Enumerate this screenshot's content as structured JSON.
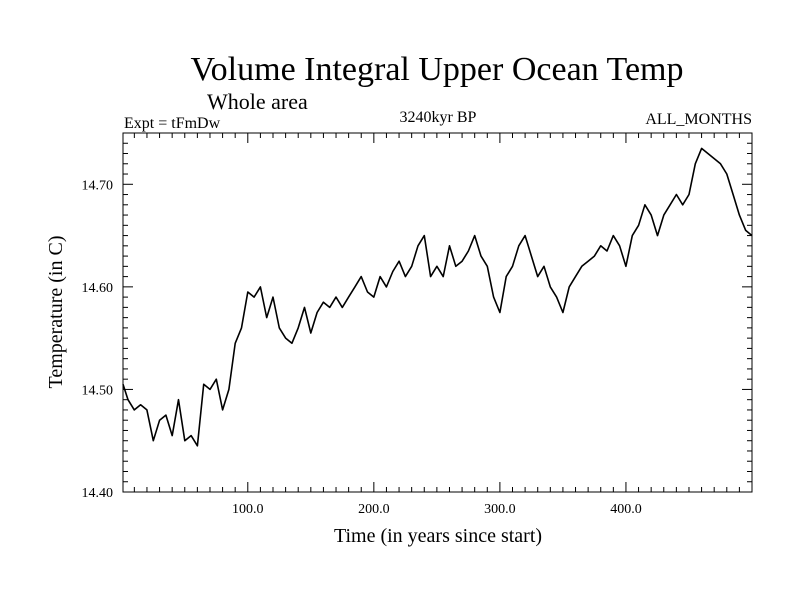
{
  "chart_data": {
    "type": "line",
    "title": "Volume Integral Upper Ocean Temp",
    "subtitle": "Whole area",
    "left_label": "Expt = tFmDw",
    "center_label": "3240kyr BP",
    "right_label": "ALL_MONTHS",
    "xlabel": "Time (in years since start)",
    "ylabel": "Temperature (in C)",
    "xlim": [
      1,
      500
    ],
    "ylim": [
      14.4,
      14.75
    ],
    "x_major_ticks": [
      100,
      200,
      300,
      400
    ],
    "x_tick_labels": [
      "100.0",
      "200.0",
      "300.0",
      "400.0"
    ],
    "y_major_ticks": [
      14.4,
      14.5,
      14.6,
      14.7
    ],
    "y_tick_labels": [
      "14.40",
      "14.50",
      "14.60",
      "14.70"
    ],
    "grid": false,
    "series": [
      {
        "name": "Volume integral upper ocean temperature",
        "x": [
          1,
          5,
          10,
          15,
          20,
          25,
          30,
          35,
          40,
          45,
          50,
          55,
          60,
          65,
          70,
          75,
          80,
          85,
          90,
          95,
          100,
          105,
          110,
          115,
          120,
          125,
          130,
          135,
          140,
          145,
          150,
          155,
          160,
          165,
          170,
          175,
          180,
          185,
          190,
          195,
          200,
          205,
          210,
          215,
          220,
          225,
          230,
          235,
          240,
          245,
          250,
          255,
          260,
          265,
          270,
          275,
          280,
          285,
          290,
          295,
          300,
          305,
          310,
          315,
          320,
          325,
          330,
          335,
          340,
          345,
          350,
          355,
          360,
          365,
          370,
          375,
          380,
          385,
          390,
          395,
          400,
          405,
          410,
          415,
          420,
          425,
          430,
          435,
          440,
          445,
          450,
          455,
          460,
          465,
          470,
          475,
          480,
          485,
          490,
          495,
          500
        ],
        "values": [
          14.505,
          14.49,
          14.48,
          14.485,
          14.48,
          14.45,
          14.47,
          14.475,
          14.455,
          14.49,
          14.45,
          14.455,
          14.445,
          14.505,
          14.5,
          14.51,
          14.48,
          14.5,
          14.545,
          14.56,
          14.595,
          14.59,
          14.6,
          14.57,
          14.59,
          14.56,
          14.55,
          14.545,
          14.56,
          14.58,
          14.555,
          14.575,
          14.585,
          14.58,
          14.59,
          14.58,
          14.59,
          14.6,
          14.61,
          14.595,
          14.59,
          14.61,
          14.6,
          14.615,
          14.625,
          14.61,
          14.62,
          14.64,
          14.65,
          14.61,
          14.62,
          14.61,
          14.64,
          14.62,
          14.625,
          14.635,
          14.65,
          14.63,
          14.62,
          14.59,
          14.575,
          14.61,
          14.62,
          14.64,
          14.65,
          14.63,
          14.61,
          14.62,
          14.6,
          14.59,
          14.575,
          14.6,
          14.61,
          14.62,
          14.625,
          14.63,
          14.64,
          14.635,
          14.65,
          14.64,
          14.62,
          14.65,
          14.66,
          14.68,
          14.67,
          14.65,
          14.67,
          14.68,
          14.69,
          14.68,
          14.69,
          14.72,
          14.735,
          14.73,
          14.725,
          14.72,
          14.71,
          14.69,
          14.67,
          14.655,
          14.65
        ]
      }
    ]
  }
}
